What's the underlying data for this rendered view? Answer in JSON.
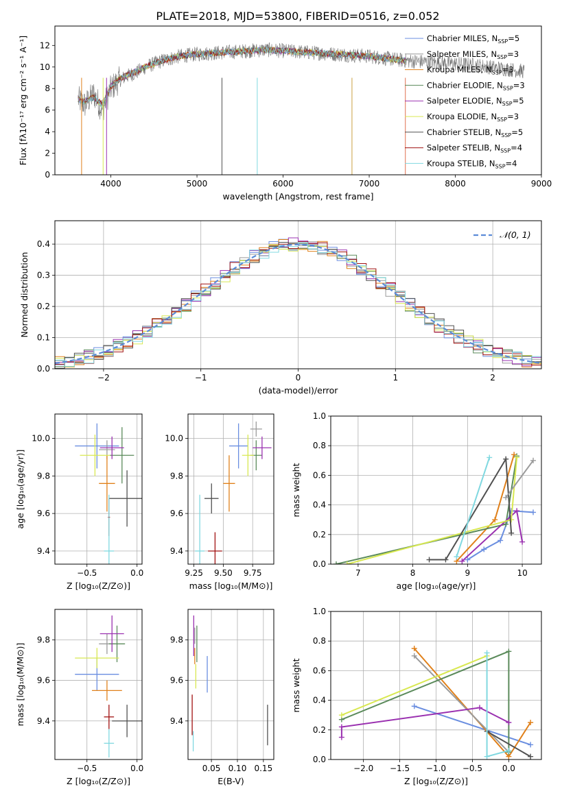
{
  "title": "PLATE=2018, MJD=53800, FIBERID=0516, z=0.052",
  "models": [
    {
      "name": "Chabrier MILES",
      "nssp": "5",
      "color": "#6a8ee0"
    },
    {
      "name": "Salpeter MILES",
      "nssp": "3",
      "color": "#9a9a9a"
    },
    {
      "name": "Kroupa MILES",
      "nssp": "3",
      "color": "#e0801a"
    },
    {
      "name": "Chabrier ELODIE",
      "nssp": "3",
      "color": "#5a8a5a"
    },
    {
      "name": "Salpeter ELODIE",
      "nssp": "5",
      "color": "#9a30b0"
    },
    {
      "name": "Kroupa ELODIE",
      "nssp": "3",
      "color": "#d8e850"
    },
    {
      "name": "Chabrier STELIB",
      "nssp": "5",
      "color": "#505050"
    },
    {
      "name": "Salpeter STELIB",
      "nssp": "4",
      "color": "#a01010"
    },
    {
      "name": "Kroupa STELIB",
      "nssp": "4",
      "color": "#80d8e0"
    }
  ],
  "chart_data": [
    {
      "id": "spectrum",
      "type": "line",
      "xlabel": "wavelength [Angstrom, rest frame]",
      "ylabel": "Flux [fλ10⁻¹⁷ erg cm⁻² s⁻¹ A⁻¹]",
      "xlim": [
        3350,
        9000
      ],
      "ylim": [
        0,
        13.8
      ],
      "xticks": [
        "4000",
        "5000",
        "6000",
        "7000",
        "8000",
        "9000"
      ],
      "yticks": [
        "0",
        "2",
        "4",
        "6",
        "8",
        "10",
        "12"
      ],
      "grid": false,
      "legend": "right",
      "series": [
        {
          "name": "data",
          "x": [
            3620,
            3700,
            3800,
            3900,
            4000,
            4100,
            4200,
            4300,
            4400,
            4600,
            4800,
            5000,
            5200,
            5400,
            5600,
            5800,
            6000,
            6200,
            6400,
            6600,
            6800,
            7000,
            7200,
            7400,
            7600,
            7800,
            8000,
            8200,
            8400,
            8600,
            8800
          ],
          "y": [
            7.0,
            6.5,
            7.5,
            6.0,
            8.0,
            8.8,
            9.2,
            9.5,
            10.0,
            10.6,
            11.0,
            11.2,
            11.3,
            11.4,
            11.5,
            11.6,
            11.5,
            11.4,
            11.3,
            11.2,
            11.1,
            11.0,
            10.8,
            10.6,
            10.5,
            10.4,
            10.3,
            10.2,
            10.0,
            9.8,
            9.6
          ]
        },
        {
          "name": "model",
          "x": [
            3620,
            3700,
            3800,
            3900,
            4000,
            4100,
            4200,
            4300,
            4400,
            4600,
            4800,
            5000,
            5200,
            5400,
            5600,
            5800,
            6000,
            6200,
            6400,
            6600,
            6800,
            7000,
            7200,
            7400
          ],
          "y": [
            7.0,
            6.8,
            7.2,
            6.5,
            8.2,
            8.9,
            9.3,
            9.6,
            10.0,
            10.6,
            11.0,
            11.2,
            11.3,
            11.4,
            11.5,
            11.6,
            11.5,
            11.4,
            11.3,
            11.2,
            11.1,
            11.0,
            10.8,
            10.6
          ]
        }
      ]
    },
    {
      "id": "residuals",
      "type": "area",
      "xlabel": "(data-model)/error",
      "ylabel": "Normed distribution",
      "xlim": [
        -2.5,
        2.5
      ],
      "ylim": [
        0,
        0.475
      ],
      "xticks": [
        "−2",
        "−1",
        "0",
        "1",
        "2"
      ],
      "yticks": [
        "0.0",
        "0.1",
        "0.2",
        "0.3",
        "0.4"
      ],
      "grid": true,
      "legend": "top-right",
      "legend_label": "𝒩(0, 1)",
      "curve": "normal(0,1)",
      "bin_width": 0.1
    },
    {
      "id": "age-vs-Z",
      "type": "scatter",
      "xlabel": "Z [log₁₀(Z/Z⊙)]",
      "ylabel": "age  [log₁₀(age/yr)]",
      "xlim": [
        -0.82,
        0.05
      ],
      "ylim": [
        9.33,
        10.13
      ],
      "xticks": [
        "−0.5",
        "0.0"
      ],
      "yticks": [
        "9.4",
        "9.6",
        "9.8",
        "10.0"
      ],
      "grid": true,
      "points": [
        {
          "x": -0.4,
          "xe": 0.22,
          "y": 9.96,
          "ye": 0.12
        },
        {
          "x": -0.3,
          "xe": 0.08,
          "y": 9.94,
          "ye": 0.05
        },
        {
          "x": -0.3,
          "xe": 0.08,
          "y": 9.76,
          "ye": 0.15
        },
        {
          "x": -0.15,
          "xe": 0.12,
          "y": 9.91,
          "ye": 0.15
        },
        {
          "x": -0.25,
          "xe": 0.12,
          "y": 9.95,
          "ye": 0.06
        },
        {
          "x": -0.42,
          "xe": 0.15,
          "y": 9.91,
          "ye": 0.11
        },
        {
          "x": -0.1,
          "xe": 0.18,
          "y": 9.68,
          "ye": 0.15
        },
        {
          "x": -0.28,
          "xe": 0.01,
          "y": 9.58,
          "ye": 0.1
        },
        {
          "x": -0.28,
          "xe": 0.05,
          "y": 9.4,
          "ye": 0.3
        }
      ]
    },
    {
      "id": "age-vs-mass",
      "type": "scatter",
      "xlabel": "mass [log₁₀(M/M⊙)]",
      "ylabel": "",
      "xlim": [
        9.2,
        9.93
      ],
      "ylim": [
        9.33,
        10.13
      ],
      "xticks": [
        "9.25",
        "9.50",
        "9.75"
      ],
      "yticks": [
        "9.4",
        "9.6",
        "9.8",
        "10.0"
      ],
      "grid": true,
      "points": [
        {
          "x": 9.63,
          "xe": 0.08,
          "y": 9.96,
          "ye": 0.12
        },
        {
          "x": 9.78,
          "xe": 0.05,
          "y": 10.05,
          "ye": 0.04
        },
        {
          "x": 9.55,
          "xe": 0.05,
          "y": 9.76,
          "ye": 0.15
        },
        {
          "x": 9.78,
          "xe": 0.05,
          "y": 9.91,
          "ye": 0.08
        },
        {
          "x": 9.83,
          "xe": 0.08,
          "y": 9.95,
          "ye": 0.06
        },
        {
          "x": 9.71,
          "xe": 0.05,
          "y": 9.91,
          "ye": 0.11
        },
        {
          "x": 9.4,
          "xe": 0.06,
          "y": 9.68,
          "ye": 0.08
        },
        {
          "x": 9.43,
          "xe": 0.06,
          "y": 9.4,
          "ye": 0.1
        },
        {
          "x": 9.3,
          "xe": 0.04,
          "y": 9.4,
          "ye": 0.3
        }
      ]
    },
    {
      "id": "mass-weight-vs-age",
      "type": "line",
      "xlabel": "age  [log₁₀(age/yr)]",
      "ylabel": "mass weight",
      "xlim": [
        6.5,
        10.35
      ],
      "ylim": [
        0,
        1.0
      ],
      "xticks": [
        "7",
        "8",
        "9",
        "10"
      ],
      "yticks": [
        "0.0",
        "0.2",
        "0.4",
        "0.6",
        "0.8",
        "1.0"
      ],
      "grid": true,
      "series": [
        {
          "name": "Chabrier MILES",
          "x": [
            9.0,
            9.3,
            9.6,
            9.8,
            10.2
          ],
          "y": [
            0.03,
            0.1,
            0.16,
            0.36,
            0.35
          ]
        },
        {
          "name": "Kroupa MILES",
          "x": [
            8.8,
            9.5,
            9.85
          ],
          "y": [
            0.02,
            0.3,
            0.74
          ]
        },
        {
          "name": "Chabrier ELODIE",
          "x": [
            6.6,
            9.7,
            9.9
          ],
          "y": [
            0.0,
            0.27,
            0.73
          ]
        },
        {
          "name": "Salpeter ELODIE",
          "x": [
            8.9,
            9.9,
            10.0
          ],
          "y": [
            0.02,
            0.36,
            0.15
          ]
        },
        {
          "name": "Kroupa ELODIE",
          "x": [
            6.8,
            9.8,
            9.9
          ],
          "y": [
            0.0,
            0.3,
            0.72
          ]
        },
        {
          "name": "Chabrier STELIB",
          "x": [
            8.3,
            8.6,
            9.7,
            9.8
          ],
          "y": [
            0.03,
            0.03,
            0.71,
            0.21
          ]
        },
        {
          "name": "Kroupa STELIB",
          "x": [
            8.8,
            9.4
          ],
          "y": [
            0.05,
            0.72
          ]
        },
        {
          "name": "Salpeter MILES",
          "x": [
            9.7,
            10.2
          ],
          "y": [
            0.45,
            0.7
          ]
        }
      ]
    },
    {
      "id": "mass-vs-Z",
      "type": "scatter",
      "xlabel": "Z [log₁₀(Z/Z⊙)]",
      "ylabel": "mass [log₁₀(M/M⊙)]",
      "xlim": [
        -0.82,
        0.05
      ],
      "ylim": [
        9.21,
        9.95
      ],
      "xticks": [
        "−0.5",
        "0.0"
      ],
      "yticks": [
        "9.4",
        "9.6",
        "9.8"
      ],
      "grid": true,
      "points": [
        {
          "x": -0.4,
          "xe": 0.22,
          "y": 9.63,
          "ye": 0.08
        },
        {
          "x": -0.3,
          "xe": 0.08,
          "y": 9.78,
          "ye": 0.05
        },
        {
          "x": -0.3,
          "xe": 0.15,
          "y": 9.55,
          "ye": 0.05
        },
        {
          "x": -0.2,
          "xe": 0.08,
          "y": 9.78,
          "ye": 0.09
        },
        {
          "x": -0.25,
          "xe": 0.12,
          "y": 9.83,
          "ye": 0.09
        },
        {
          "x": -0.4,
          "xe": 0.22,
          "y": 9.71,
          "ye": 0.05
        },
        {
          "x": -0.1,
          "xe": 0.15,
          "y": 9.4,
          "ye": 0.08
        },
        {
          "x": -0.28,
          "xe": 0.05,
          "y": 9.42,
          "ye": 0.06
        },
        {
          "x": -0.28,
          "xe": 0.05,
          "y": 9.29,
          "ye": 0.07
        }
      ]
    },
    {
      "id": "mass-vs-ebv",
      "type": "scatter",
      "xlabel": "E(B-V)",
      "ylabel": "",
      "xlim": [
        0.005,
        0.17
      ],
      "ylim": [
        9.21,
        9.95
      ],
      "xticks": [
        "0.05",
        "0.10",
        "0.15"
      ],
      "yticks": [
        "9.4",
        "9.6",
        "9.8"
      ],
      "grid": true,
      "points": [
        {
          "x": 0.042,
          "y": 9.63,
          "ye": 0.09
        },
        {
          "x": 0.018,
          "y": 9.82,
          "ye": 0.04
        },
        {
          "x": 0.018,
          "y": 9.72,
          "ye": 0.04
        },
        {
          "x": 0.022,
          "y": 9.78,
          "ye": 0.09
        },
        {
          "x": 0.016,
          "y": 9.82,
          "ye": 0.1
        },
        {
          "x": 0.02,
          "y": 9.62,
          "ye": 0.06
        },
        {
          "x": 0.158,
          "y": 9.38,
          "ye": 0.1
        },
        {
          "x": 0.013,
          "y": 9.43,
          "ye": 0.1
        },
        {
          "x": 0.015,
          "y": 9.3,
          "ye": 0.05
        }
      ]
    },
    {
      "id": "mass-weight-vs-Z",
      "type": "line",
      "xlabel": "Z [log₁₀(Z/Z⊙)]",
      "ylabel": "mass weight",
      "xlim": [
        -2.45,
        0.45
      ],
      "ylim": [
        0,
        1.0
      ],
      "xticks": [
        "−2.0",
        "−1.5",
        "−1.0",
        "−0.5",
        "0.0"
      ],
      "yticks": [
        "0.0",
        "0.2",
        "0.4",
        "0.6",
        "0.8",
        "1.0"
      ],
      "grid": true,
      "series": [
        {
          "name": "Chabrier MILES",
          "x": [
            -1.3,
            0.3
          ],
          "y": [
            0.36,
            0.1
          ]
        },
        {
          "name": "Kroupa MILES",
          "x": [
            -1.3,
            0.0,
            0.3
          ],
          "y": [
            0.75,
            0.02,
            0.25
          ]
        },
        {
          "name": "Salpeter MILES",
          "x": [
            -1.3,
            0.0
          ],
          "y": [
            0.7,
            0.05
          ]
        },
        {
          "name": "Chabrier ELODIE",
          "x": [
            -2.3,
            0.0,
            0.0
          ],
          "y": [
            0.27,
            0.73,
            0.05
          ]
        },
        {
          "name": "Salpeter ELODIE",
          "x": [
            -2.3,
            -2.3,
            -0.4,
            0.0
          ],
          "y": [
            0.15,
            0.22,
            0.35,
            0.25
          ]
        },
        {
          "name": "Kroupa ELODIE",
          "x": [
            -2.3,
            -0.3
          ],
          "y": [
            0.3,
            0.7
          ]
        },
        {
          "name": "Chabrier STELIB",
          "x": [
            -0.3,
            0.3
          ],
          "y": [
            0.19,
            0.02
          ]
        },
        {
          "name": "Kroupa STELIB",
          "x": [
            -0.3,
            -0.3,
            0.0
          ],
          "y": [
            0.72,
            0.02,
            0.06
          ]
        }
      ]
    }
  ]
}
